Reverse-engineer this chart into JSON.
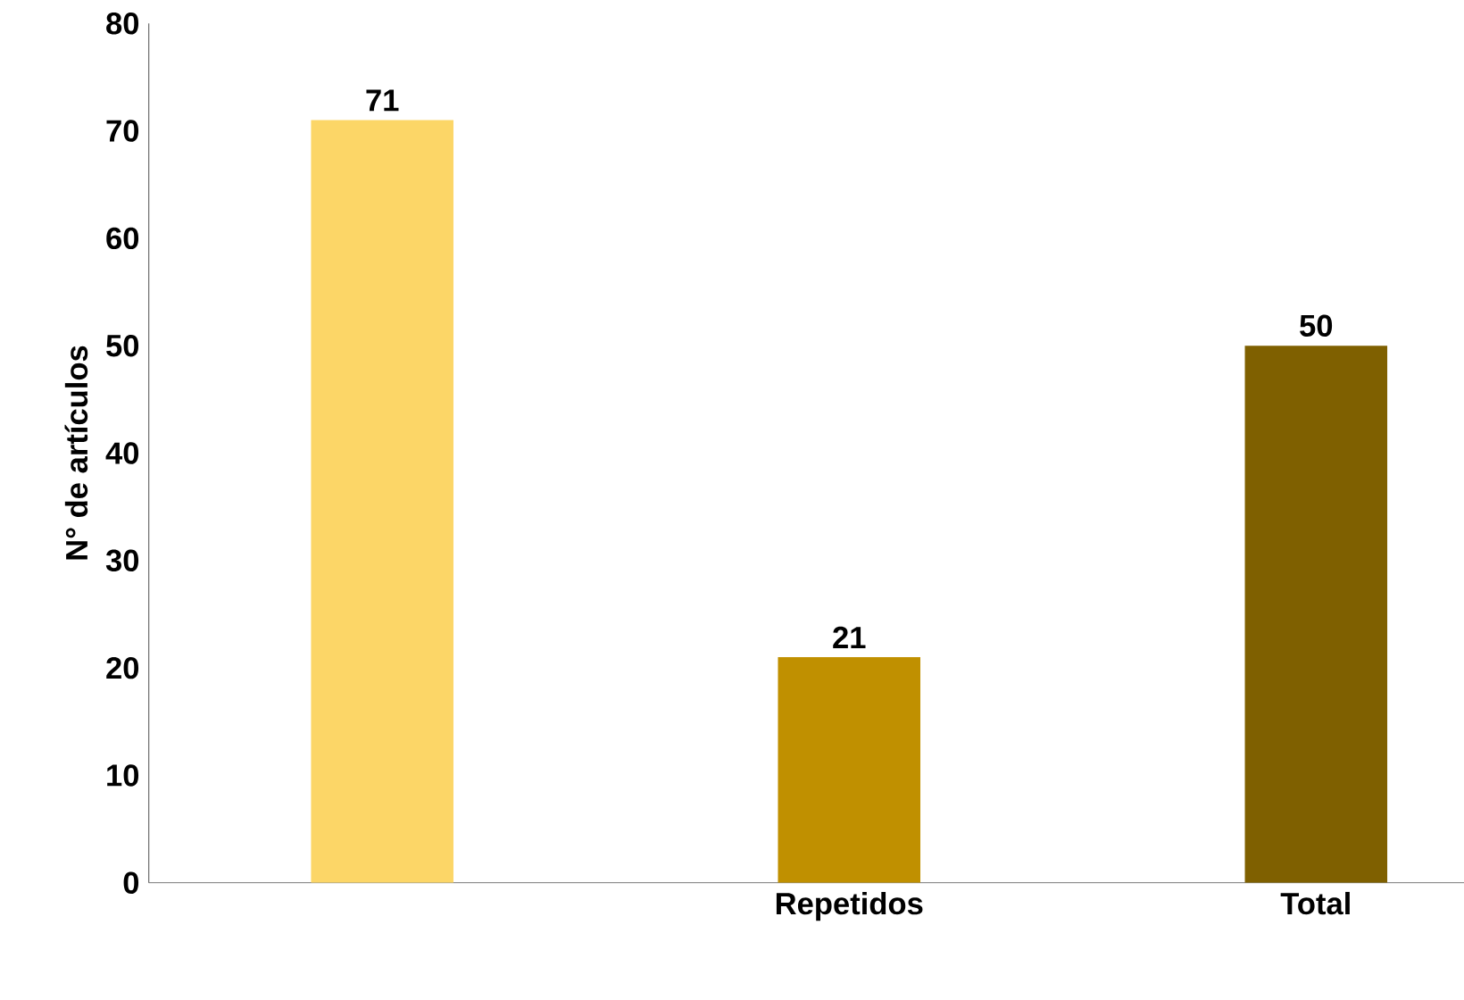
{
  "chart_data": {
    "type": "bar",
    "ylabel": "N° de artículos",
    "categories": [
      null,
      "Repetidos",
      "Total"
    ],
    "values": [
      71,
      21,
      50
    ],
    "colors": [
      "#fcd667",
      "#c09000",
      "#7f6000"
    ],
    "ylim": [
      0,
      80
    ],
    "yticks": [
      0,
      10,
      20,
      30,
      40,
      50,
      60,
      70,
      80
    ],
    "data_labels": true,
    "grid": false
  }
}
